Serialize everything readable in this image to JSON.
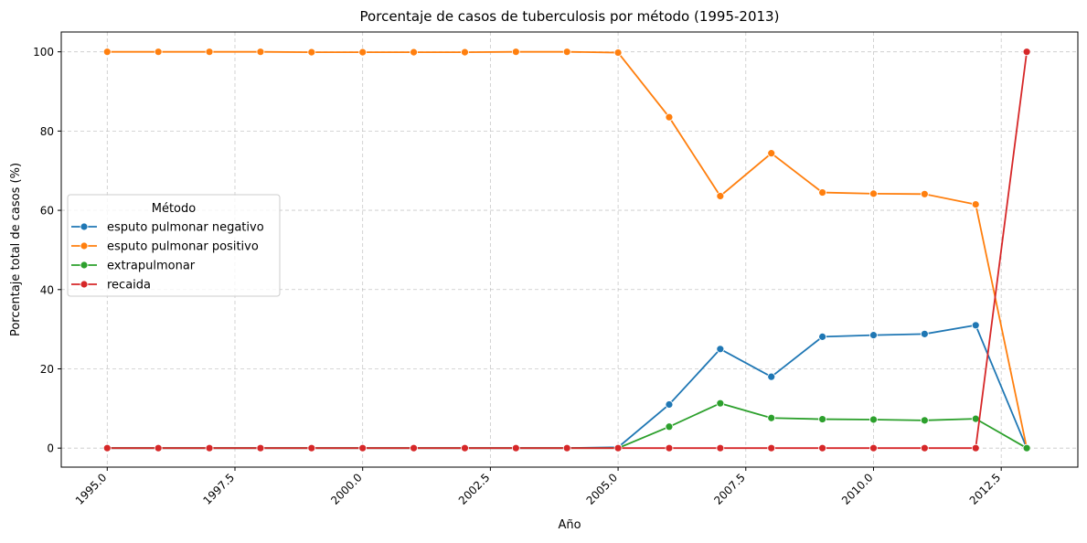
{
  "chart_data": {
    "type": "line",
    "title": "Porcentaje de casos de tuberculosis por método (1995-2013)",
    "xlabel": "Año",
    "ylabel": "Porcentaje total de casos (%)",
    "x": [
      1995,
      1996,
      1997,
      1998,
      1999,
      2000,
      2001,
      2002,
      2003,
      2004,
      2005,
      2006,
      2007,
      2008,
      2009,
      2010,
      2011,
      2012,
      2013
    ],
    "xlim": [
      1994.1,
      2014.0
    ],
    "ylim": [
      -4.8,
      105
    ],
    "xticks": [
      1995.0,
      1997.5,
      2000.0,
      2002.5,
      2005.0,
      2007.5,
      2010.0,
      2012.5
    ],
    "xtick_labels": [
      "1995.0",
      "1997.5",
      "2000.0",
      "2002.5",
      "2005.0",
      "2007.5",
      "2010.0",
      "2012.5"
    ],
    "yticks": [
      0,
      20,
      40,
      60,
      80,
      100
    ],
    "ytick_labels": [
      "0",
      "20",
      "40",
      "60",
      "80",
      "100"
    ],
    "grid": true,
    "legend": {
      "title": "Método",
      "placement": "center-left"
    },
    "series": [
      {
        "name": "esputo pulmonar negativo",
        "color": "#1f77b4",
        "values": [
          0,
          0,
          0,
          0,
          0,
          0,
          0,
          0,
          0,
          0,
          0.2,
          11,
          25,
          18,
          28.1,
          28.5,
          28.8,
          31,
          0
        ]
      },
      {
        "name": "esputo pulmonar positivo",
        "color": "#ff7f0e",
        "values": [
          100,
          100,
          100,
          100,
          99.9,
          99.9,
          99.9,
          99.9,
          100,
          100,
          99.8,
          83.5,
          63.6,
          74.4,
          64.5,
          64.2,
          64.1,
          61.5,
          0
        ]
      },
      {
        "name": "extrapulmonar",
        "color": "#2ca02c",
        "values": [
          0,
          0,
          0,
          0,
          0,
          0,
          0,
          0,
          0,
          0,
          0,
          5.4,
          11.3,
          7.6,
          7.3,
          7.2,
          7,
          7.4,
          0
        ]
      },
      {
        "name": "recaida",
        "color": "#d62728",
        "values": [
          0,
          0,
          0,
          0,
          0,
          0,
          0,
          0,
          0,
          0,
          0,
          0,
          0,
          0,
          0,
          0,
          0,
          0,
          100
        ]
      }
    ]
  }
}
